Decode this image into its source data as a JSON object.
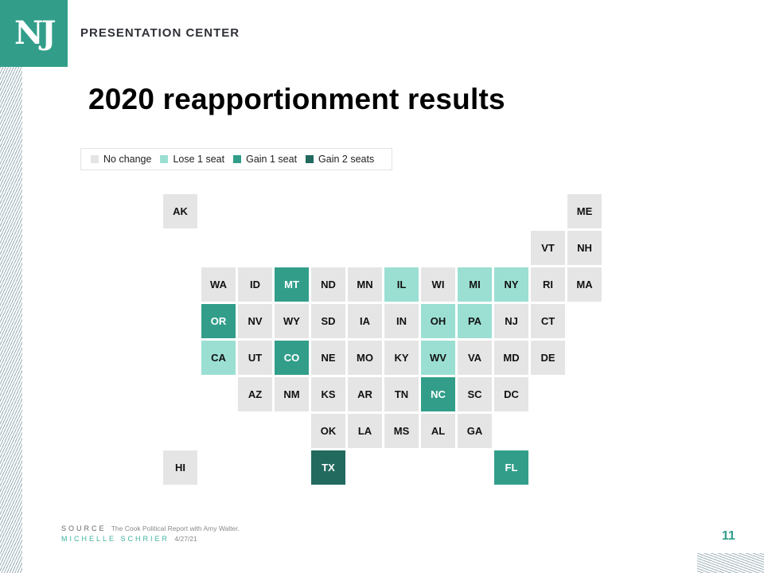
{
  "header": {
    "logo": "NJ",
    "brand": "PRESENTATION CENTER"
  },
  "title": "2020 reapportionment results",
  "legend": [
    {
      "label": "No change",
      "color": "#e5e5e5"
    },
    {
      "label": "Lose 1 seat",
      "color": "#9bdfd3"
    },
    {
      "label": "Gain 1 seat",
      "color": "#329e8a"
    },
    {
      "label": "Gain 2 seats",
      "color": "#22695e"
    }
  ],
  "colors": {
    "no_change": "#e5e5e5",
    "lose_1": "#9bdfd3",
    "gain_1": "#329e8a",
    "gain_2": "#22695e",
    "accent": "#329e8a"
  },
  "chart_data": {
    "type": "heatmap",
    "title": "2020 reapportionment results",
    "legend_position": "top-left",
    "categories": [
      "No change",
      "Lose 1 seat",
      "Gain 1 seat",
      "Gain 2 seats"
    ],
    "tiles": [
      {
        "state": "AK",
        "col": 0,
        "row": 0,
        "change": 0
      },
      {
        "state": "ME",
        "col": 11,
        "row": 0,
        "change": 0
      },
      {
        "state": "VT",
        "col": 10,
        "row": 1,
        "change": 0
      },
      {
        "state": "NH",
        "col": 11,
        "row": 1,
        "change": 0
      },
      {
        "state": "WA",
        "col": 1,
        "row": 2,
        "change": 0
      },
      {
        "state": "ID",
        "col": 2,
        "row": 2,
        "change": 0
      },
      {
        "state": "MT",
        "col": 3,
        "row": 2,
        "change": 1
      },
      {
        "state": "ND",
        "col": 4,
        "row": 2,
        "change": 0
      },
      {
        "state": "MN",
        "col": 5,
        "row": 2,
        "change": 0
      },
      {
        "state": "IL",
        "col": 6,
        "row": 2,
        "change": -1
      },
      {
        "state": "WI",
        "col": 7,
        "row": 2,
        "change": 0
      },
      {
        "state": "MI",
        "col": 8,
        "row": 2,
        "change": -1
      },
      {
        "state": "NY",
        "col": 9,
        "row": 2,
        "change": -1
      },
      {
        "state": "RI",
        "col": 10,
        "row": 2,
        "change": 0
      },
      {
        "state": "MA",
        "col": 11,
        "row": 2,
        "change": 0
      },
      {
        "state": "OR",
        "col": 1,
        "row": 3,
        "change": 1
      },
      {
        "state": "NV",
        "col": 2,
        "row": 3,
        "change": 0
      },
      {
        "state": "WY",
        "col": 3,
        "row": 3,
        "change": 0
      },
      {
        "state": "SD",
        "col": 4,
        "row": 3,
        "change": 0
      },
      {
        "state": "IA",
        "col": 5,
        "row": 3,
        "change": 0
      },
      {
        "state": "IN",
        "col": 6,
        "row": 3,
        "change": 0
      },
      {
        "state": "OH",
        "col": 7,
        "row": 3,
        "change": -1
      },
      {
        "state": "PA",
        "col": 8,
        "row": 3,
        "change": -1
      },
      {
        "state": "NJ",
        "col": 9,
        "row": 3,
        "change": 0
      },
      {
        "state": "CT",
        "col": 10,
        "row": 3,
        "change": 0
      },
      {
        "state": "CA",
        "col": 1,
        "row": 4,
        "change": -1
      },
      {
        "state": "UT",
        "col": 2,
        "row": 4,
        "change": 0
      },
      {
        "state": "CO",
        "col": 3,
        "row": 4,
        "change": 1
      },
      {
        "state": "NE",
        "col": 4,
        "row": 4,
        "change": 0
      },
      {
        "state": "MO",
        "col": 5,
        "row": 4,
        "change": 0
      },
      {
        "state": "KY",
        "col": 6,
        "row": 4,
        "change": 0
      },
      {
        "state": "WV",
        "col": 7,
        "row": 4,
        "change": -1
      },
      {
        "state": "VA",
        "col": 8,
        "row": 4,
        "change": 0
      },
      {
        "state": "MD",
        "col": 9,
        "row": 4,
        "change": 0
      },
      {
        "state": "DE",
        "col": 10,
        "row": 4,
        "change": 0
      },
      {
        "state": "AZ",
        "col": 2,
        "row": 5,
        "change": 0
      },
      {
        "state": "NM",
        "col": 3,
        "row": 5,
        "change": 0
      },
      {
        "state": "KS",
        "col": 4,
        "row": 5,
        "change": 0
      },
      {
        "state": "AR",
        "col": 5,
        "row": 5,
        "change": 0
      },
      {
        "state": "TN",
        "col": 6,
        "row": 5,
        "change": 0
      },
      {
        "state": "NC",
        "col": 7,
        "row": 5,
        "change": 1
      },
      {
        "state": "SC",
        "col": 8,
        "row": 5,
        "change": 0
      },
      {
        "state": "DC",
        "col": 9,
        "row": 5,
        "change": 0
      },
      {
        "state": "OK",
        "col": 4,
        "row": 6,
        "change": 0
      },
      {
        "state": "LA",
        "col": 5,
        "row": 6,
        "change": 0
      },
      {
        "state": "MS",
        "col": 6,
        "row": 6,
        "change": 0
      },
      {
        "state": "AL",
        "col": 7,
        "row": 6,
        "change": 0
      },
      {
        "state": "GA",
        "col": 8,
        "row": 6,
        "change": 0
      },
      {
        "state": "HI",
        "col": 0,
        "row": 7,
        "change": 0
      },
      {
        "state": "TX",
        "col": 4,
        "row": 7,
        "change": 2
      },
      {
        "state": "FL",
        "col": 9,
        "row": 7,
        "change": 1
      }
    ]
  },
  "footer": {
    "source_label": "SOURCE",
    "source_text": "The Cook Political Report with Amy Walter.",
    "author_label": "MICHELLE SCHRIER",
    "date": "4/27/21",
    "page_number": "11"
  }
}
